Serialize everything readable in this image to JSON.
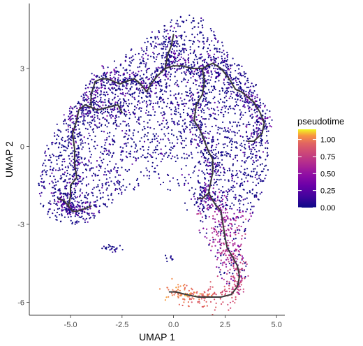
{
  "chart_data": {
    "type": "scatter",
    "title": "",
    "xlabel": "UMAP 1",
    "ylabel": "UMAP 2",
    "xlim": [
      -7.0,
      5.4
    ],
    "ylim": [
      -6.5,
      5.5
    ],
    "x_ticks": [
      -5.0,
      -2.5,
      0.0,
      2.5,
      5.0
    ],
    "x_tick_labels": [
      "-5.0",
      "-2.5",
      "0.0",
      "2.5",
      "5.0"
    ],
    "y_ticks": [
      3,
      0,
      -3,
      -6
    ],
    "y_tick_labels": [
      "3",
      "0",
      "-3",
      "-6"
    ],
    "grid": false,
    "legend": {
      "title": "pseudotime",
      "placement": "right",
      "range": [
        0.0,
        1.15
      ],
      "ticks": [
        0.0,
        0.25,
        0.5,
        0.75,
        1.0
      ],
      "tick_labels": [
        "0.00",
        "0.25",
        "0.50",
        "0.75",
        "1.00"
      ],
      "colormap": "plasma"
    },
    "trajectory_color": "#3a3a3a",
    "trajectory": [
      [
        [
          -5.6,
          -2.0
        ],
        [
          -5.3,
          -2.1
        ],
        [
          -5.1,
          -2.3
        ],
        [
          -4.9,
          -2.5
        ],
        [
          -4.7,
          -2.5
        ],
        [
          -4.3,
          -2.4
        ],
        [
          -4.0,
          -2.3
        ]
      ],
      [
        [
          -5.1,
          -2.3
        ],
        [
          -5.0,
          -1.9
        ],
        [
          -5.0,
          -1.5
        ],
        [
          -4.7,
          -1.2
        ],
        [
          -4.8,
          -0.7
        ],
        [
          -4.8,
          -0.1
        ],
        [
          -4.9,
          0.5
        ],
        [
          -4.7,
          1.0
        ],
        [
          -4.6,
          1.4
        ]
      ],
      [
        [
          -4.6,
          1.4
        ],
        [
          -4.3,
          1.6
        ],
        [
          -4.0,
          1.5
        ],
        [
          -3.7,
          1.4
        ],
        [
          -3.2,
          1.5
        ],
        [
          -2.7,
          1.6
        ],
        [
          -2.5,
          1.3
        ]
      ],
      [
        [
          -4.0,
          1.5
        ],
        [
          -4.0,
          2.0
        ],
        [
          -3.8,
          2.5
        ],
        [
          -3.5,
          2.6
        ],
        [
          -3.2,
          2.6
        ],
        [
          -2.9,
          2.5
        ],
        [
          -2.6,
          2.4
        ],
        [
          -2.3,
          2.5
        ]
      ],
      [
        [
          -2.3,
          2.5
        ],
        [
          -1.9,
          2.6
        ],
        [
          -1.6,
          2.4
        ],
        [
          -1.3,
          2.1
        ],
        [
          -1.1,
          2.4
        ],
        [
          -0.8,
          2.7
        ],
        [
          -0.4,
          3.0
        ],
        [
          0.0,
          3.1
        ],
        [
          0.4,
          3.1
        ],
        [
          0.9,
          3.0
        ],
        [
          1.4,
          3.0
        ]
      ],
      [
        [
          -0.4,
          3.0
        ],
        [
          -0.3,
          3.5
        ],
        [
          -0.1,
          3.9
        ],
        [
          0.0,
          4.3
        ]
      ],
      [
        [
          1.4,
          3.0
        ],
        [
          1.9,
          3.2
        ],
        [
          2.3,
          3.0
        ],
        [
          2.7,
          2.6
        ],
        [
          3.0,
          2.2
        ],
        [
          3.3,
          2.1
        ],
        [
          3.6,
          1.9
        ],
        [
          3.9,
          1.7
        ],
        [
          4.2,
          1.3
        ],
        [
          4.4,
          0.9
        ],
        [
          4.3,
          0.5
        ],
        [
          3.9,
          0.2
        ],
        [
          3.6,
          0.2
        ]
      ],
      [
        [
          1.4,
          3.0
        ],
        [
          1.5,
          2.5
        ],
        [
          1.4,
          2.0
        ],
        [
          1.1,
          1.6
        ],
        [
          1.0,
          1.0
        ],
        [
          1.3,
          0.6
        ],
        [
          1.5,
          0.2
        ],
        [
          1.7,
          -0.2
        ],
        [
          1.9,
          -0.5
        ],
        [
          1.9,
          -1.0
        ],
        [
          1.8,
          -1.4
        ],
        [
          1.7,
          -1.8
        ],
        [
          1.4,
          -2.0
        ],
        [
          1.2,
          -2.0
        ]
      ],
      [
        [
          1.7,
          -1.8
        ],
        [
          2.0,
          -2.2
        ],
        [
          2.3,
          -2.5
        ],
        [
          2.4,
          -3.0
        ],
        [
          2.5,
          -3.5
        ],
        [
          2.6,
          -3.9
        ],
        [
          2.9,
          -4.3
        ],
        [
          3.1,
          -4.6
        ],
        [
          3.2,
          -5.0
        ],
        [
          3.1,
          -5.4
        ],
        [
          2.8,
          -5.7
        ],
        [
          2.3,
          -5.8
        ],
        [
          1.7,
          -5.8
        ],
        [
          1.2,
          -5.8
        ],
        [
          0.6,
          -5.7
        ],
        [
          0.1,
          -5.6
        ],
        [
          -0.2,
          -5.6
        ]
      ]
    ]
  }
}
